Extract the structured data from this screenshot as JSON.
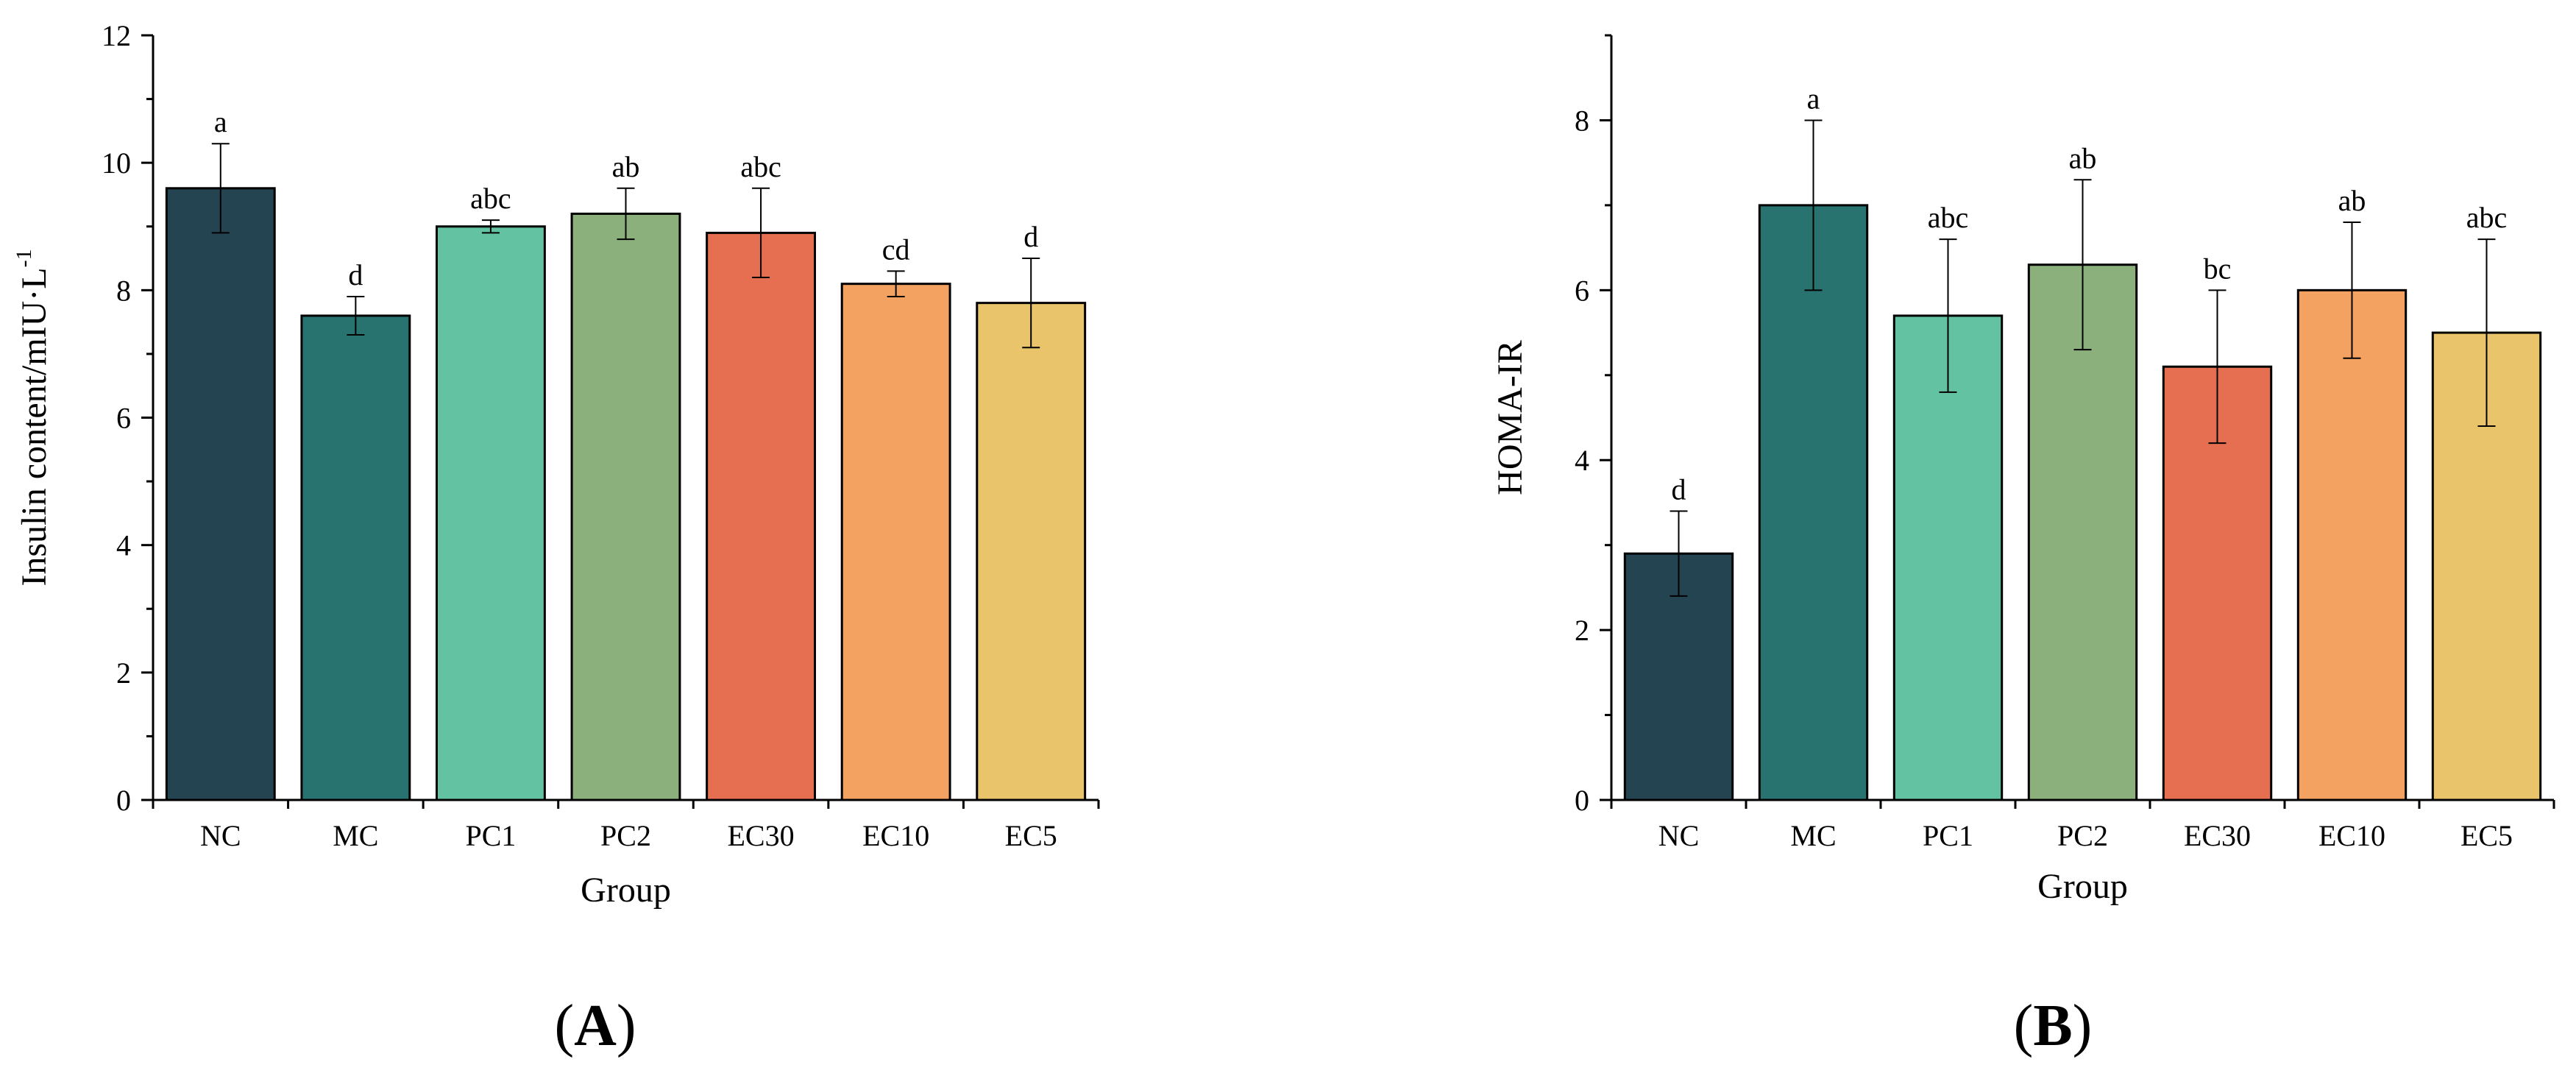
{
  "chart_data": [
    {
      "type": "bar",
      "panel_label": "A",
      "title": "",
      "xlabel": "Group",
      "ylabel": "Insulin content/mIU·L",
      "ylabel_superscript": "-1",
      "ylim": [
        0,
        12
      ],
      "yticks": [
        0,
        2,
        4,
        6,
        8,
        10,
        12
      ],
      "ytick_labels": [
        "0",
        "2",
        "4",
        "6",
        "8",
        "10",
        "12"
      ],
      "categories": [
        "NC",
        "MC",
        "PC1",
        "PC2",
        "EC30",
        "EC10",
        "EC5"
      ],
      "values": [
        9.6,
        7.6,
        9.0,
        9.2,
        8.9,
        8.1,
        7.8
      ],
      "errors": [
        0.7,
        0.3,
        0.1,
        0.4,
        0.7,
        0.2,
        0.7
      ],
      "significance": [
        "a",
        "d",
        "abc",
        "ab",
        "abc",
        "cd",
        "d"
      ],
      "colors": [
        "#254452",
        "#287370",
        "#63c2a2",
        "#8bb07b",
        "#e76f51",
        "#f3a261",
        "#e9c46b"
      ],
      "grid": false
    },
    {
      "type": "bar",
      "panel_label": "B",
      "title": "",
      "xlabel": "Group",
      "ylabel": "HOMA-IR",
      "ylabel_superscript": "",
      "ylim": [
        0,
        9
      ],
      "yticks": [
        0,
        2,
        4,
        6,
        8
      ],
      "ytick_labels": [
        "0",
        "2",
        "4",
        "6",
        "8"
      ],
      "categories": [
        "NC",
        "MC",
        "PC1",
        "PC2",
        "EC30",
        "EC10",
        "EC5"
      ],
      "values": [
        2.9,
        7.0,
        5.7,
        6.3,
        5.1,
        6.0,
        5.5
      ],
      "errors": [
        0.5,
        1.0,
        0.9,
        1.0,
        0.9,
        0.8,
        1.1
      ],
      "significance": [
        "d",
        "a",
        "abc",
        "ab",
        "bc",
        "ab",
        "abc"
      ],
      "colors": [
        "#254452",
        "#287370",
        "#63c2a2",
        "#8bb07b",
        "#e76f51",
        "#f3a261",
        "#e9c46b"
      ],
      "grid": false
    }
  ]
}
